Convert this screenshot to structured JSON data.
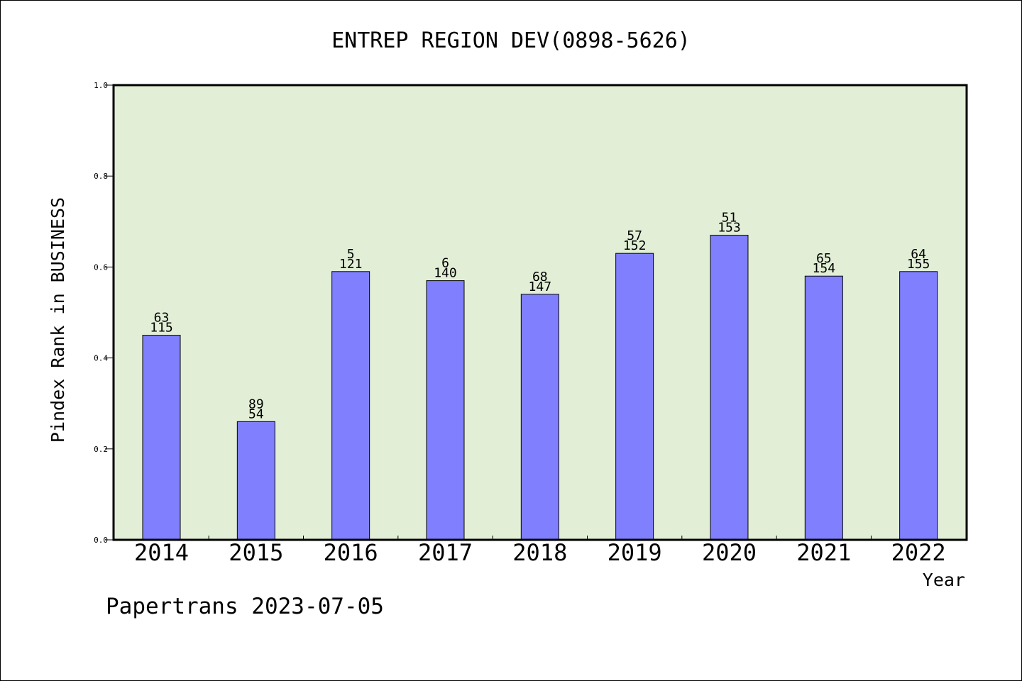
{
  "chart_data": {
    "type": "bar",
    "title": "ENTREP REGION DEV(0898-5626)",
    "xlabel": "Year",
    "ylabel": "Pindex Rank in BUSINESS",
    "ylim": [
      0,
      1.0
    ],
    "yticks": [
      "0.0",
      "0.2",
      "0.4",
      "0.6",
      "0.8",
      "1.0"
    ],
    "grid": false,
    "categories": [
      "2014",
      "2015",
      "2016",
      "2017",
      "2018",
      "2019",
      "2020",
      "2021",
      "2022"
    ],
    "values": [
      0.45,
      0.26,
      0.59,
      0.57,
      0.54,
      0.63,
      0.67,
      0.58,
      0.59
    ],
    "labels_top": [
      "63",
      "89",
      "5",
      "6",
      "68",
      "57",
      "51",
      "65",
      "64"
    ],
    "labels_bottom": [
      "115",
      "54",
      "121",
      "140",
      "147",
      "152",
      "153",
      "154",
      "155"
    ],
    "colors": {
      "plot_background": "#e2efd6",
      "bar_fill": "#8080ff",
      "axis": "#000000"
    }
  },
  "footer": "Papertrans 2023-07-05"
}
